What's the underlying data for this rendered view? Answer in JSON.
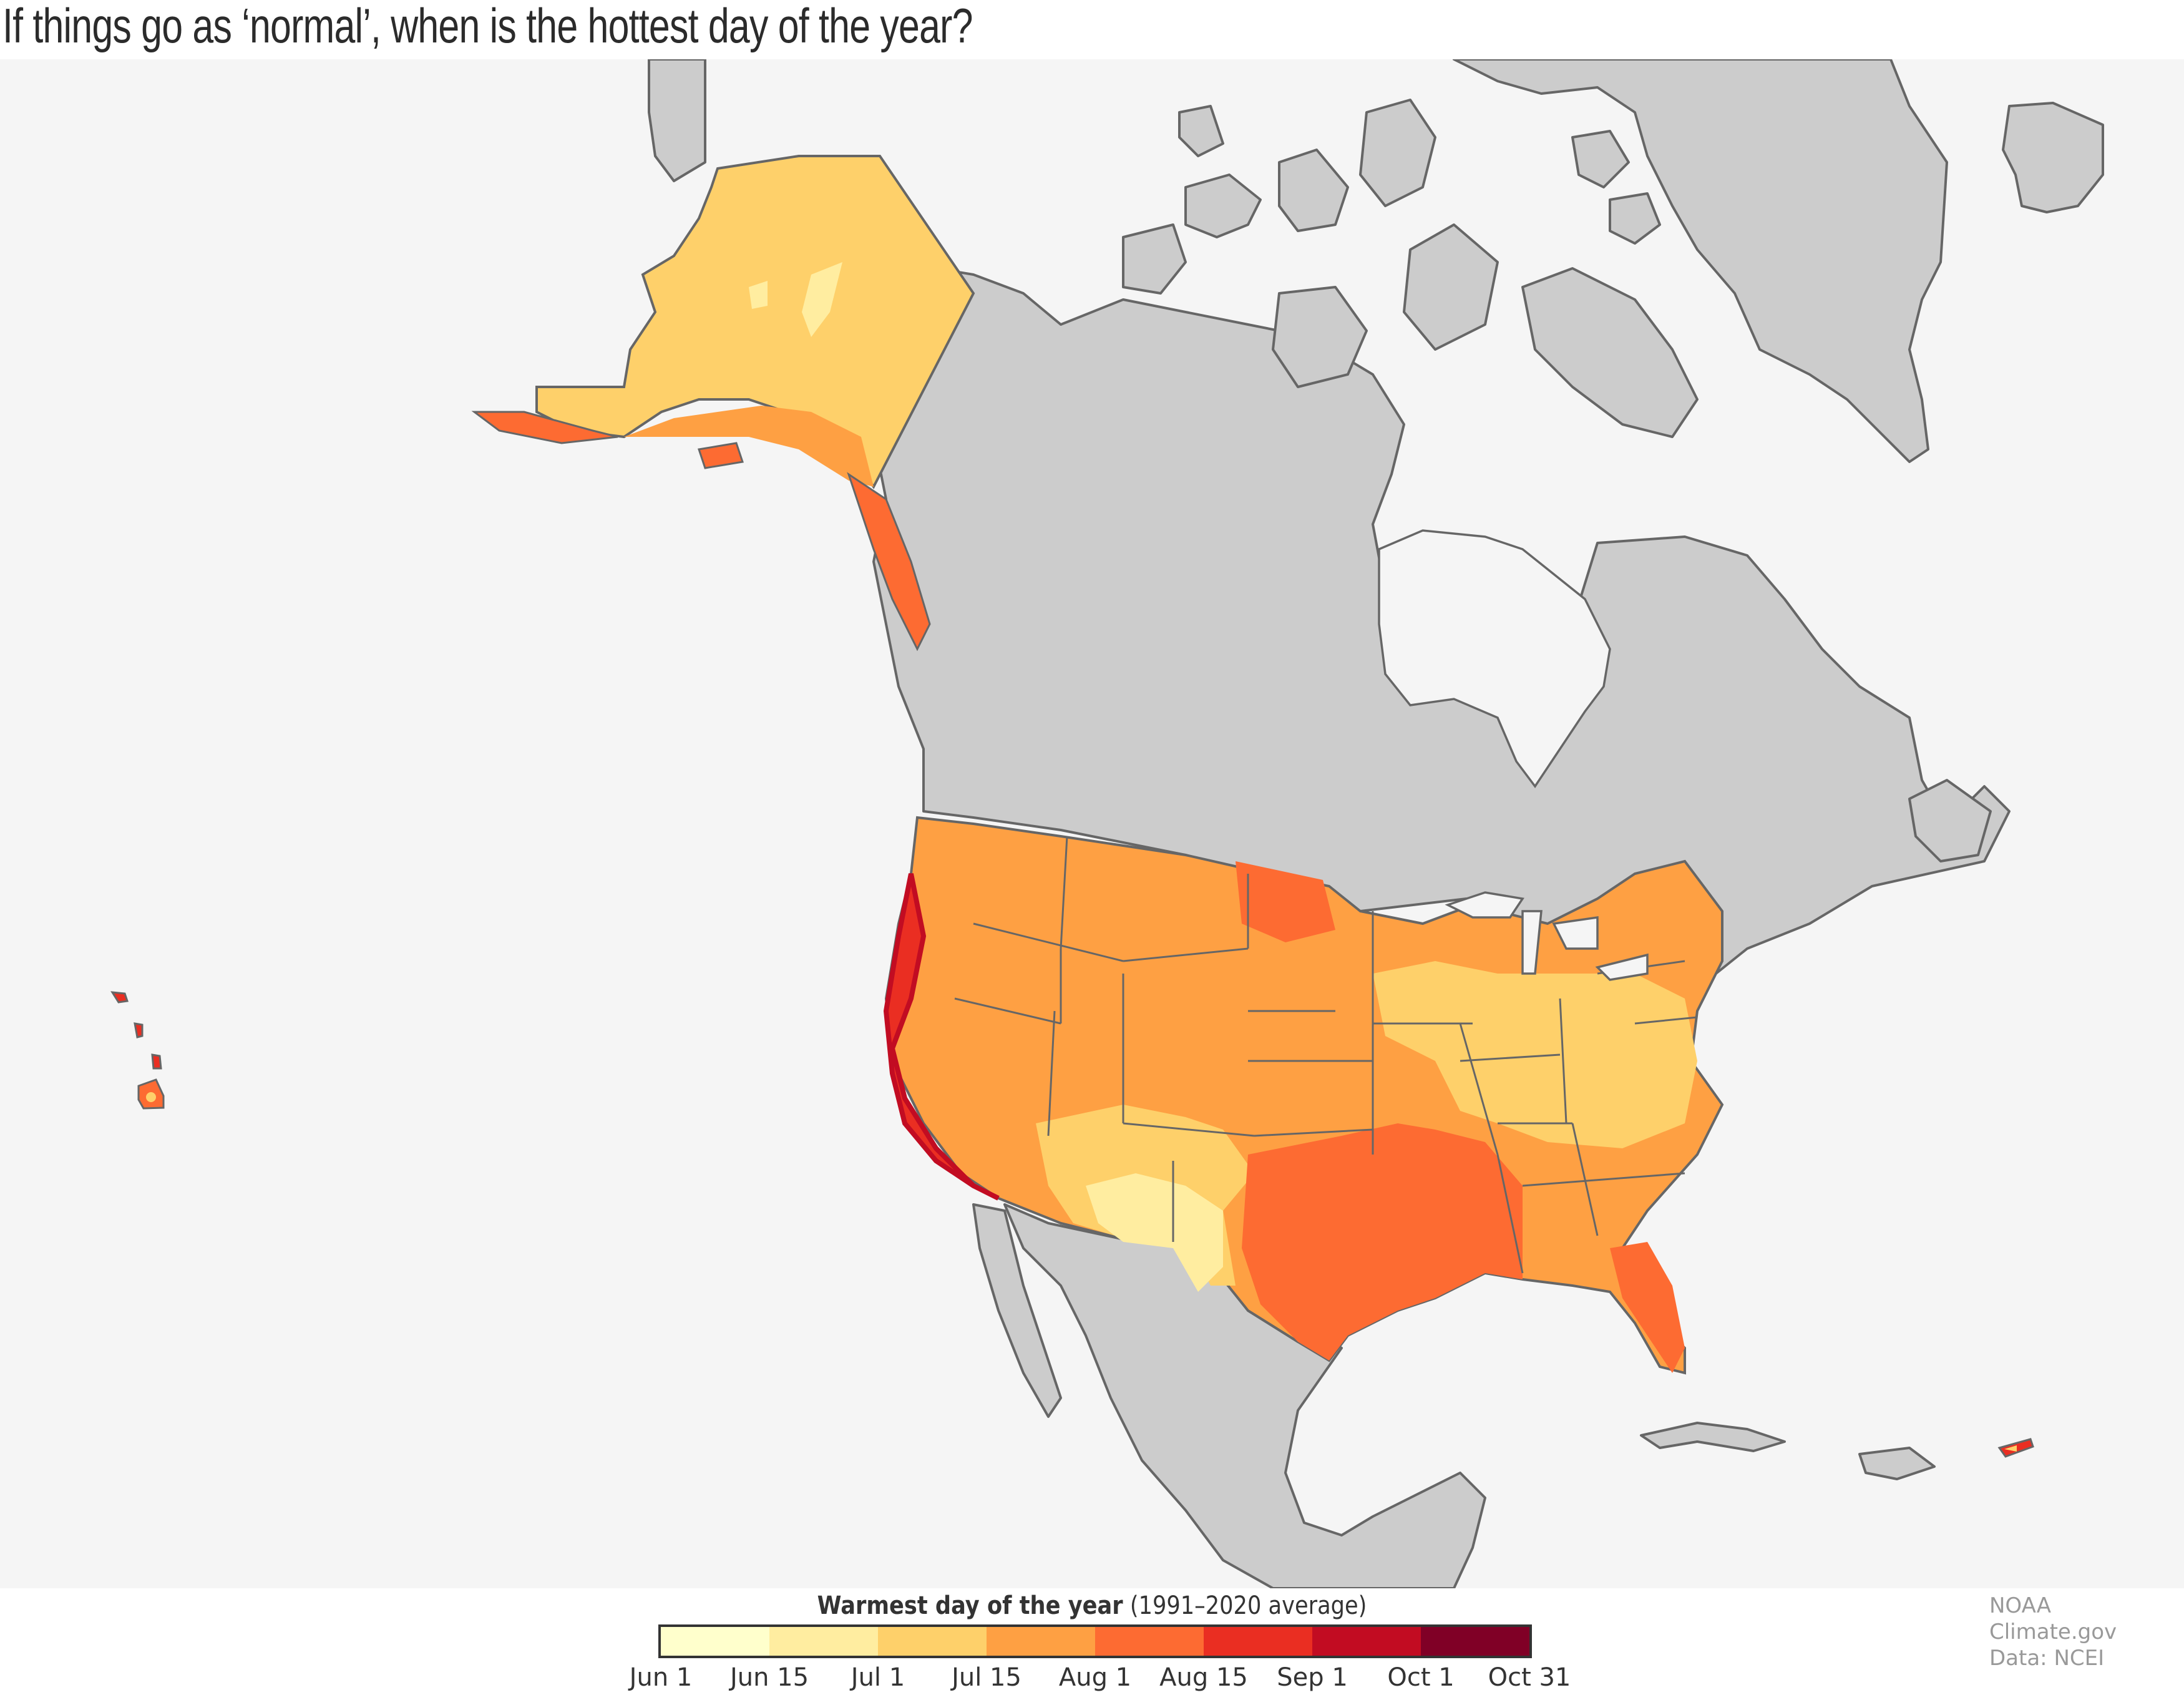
{
  "title": "If things go as ‘normal’, when is the hottest day of the year?",
  "legend": {
    "title_bold": "Warmest day of the year",
    "title_rest": " (1991–2020 average)",
    "bins": [
      {
        "from": "Jun 1",
        "to": "Jun 15",
        "color": "#ffffcc"
      },
      {
        "from": "Jun 15",
        "to": "Jul 1",
        "color": "#ffeda0"
      },
      {
        "from": "Jul 1",
        "to": "Jul 15",
        "color": "#fed06a"
      },
      {
        "from": "Jul 15",
        "to": "Aug 1",
        "color": "#fea043"
      },
      {
        "from": "Aug 1",
        "to": "Aug 15",
        "color": "#fd6b32"
      },
      {
        "from": "Aug 15",
        "to": "Sep 1",
        "color": "#ea2e22"
      },
      {
        "from": "Sep 1",
        "to": "Oct 1",
        "color": "#c20c22"
      },
      {
        "from": "Oct 1",
        "to": "Oct 31",
        "color": "#800026"
      }
    ],
    "ticks": [
      "Jun 1",
      "Jun 15",
      "Jul 1",
      "Jul 15",
      "Aug 1",
      "Aug 15",
      "Sep 1",
      "Oct 1",
      "Oct 31"
    ]
  },
  "credit": {
    "line1": "NOAA Climate.gov",
    "line2": "Data: NCEI"
  },
  "map": {
    "background": "#f5f5f5",
    "no_data_land": "#cccccc",
    "outline": "#666666",
    "regions": [
      {
        "name": "Alaska interior",
        "bin": "Jul 1 – Jul 15"
      },
      {
        "name": "Alaska south coast / Aleutians",
        "bin": "Jul 15 – Aug 15"
      },
      {
        "name": "Pacific coast (CA/OR/WA)",
        "bin": "Aug 15 – Oct 1"
      },
      {
        "name": "Interior West / Plains / Northeast",
        "bin": "Jul 15 – Aug 1"
      },
      {
        "name": "Arizona / New Mexico / West Texas",
        "bin": "Jun 1 – Jul 1"
      },
      {
        "name": "Midwest / Ohio Valley / Mid-Atlantic",
        "bin": "Jul 1 – Jul 15"
      },
      {
        "name": "Texas / Oklahoma / Gulf South",
        "bin": "Aug 1 – Aug 15"
      },
      {
        "name": "North Dakota",
        "bin": "Aug 1 – Aug 15"
      },
      {
        "name": "Florida",
        "bin": "Jul 15 – Aug 15"
      },
      {
        "name": "Hawaii",
        "bin": "Jul 1 – Oct 1"
      },
      {
        "name": "Puerto Rico",
        "bin": "Jul 1 – Oct 1"
      }
    ]
  }
}
